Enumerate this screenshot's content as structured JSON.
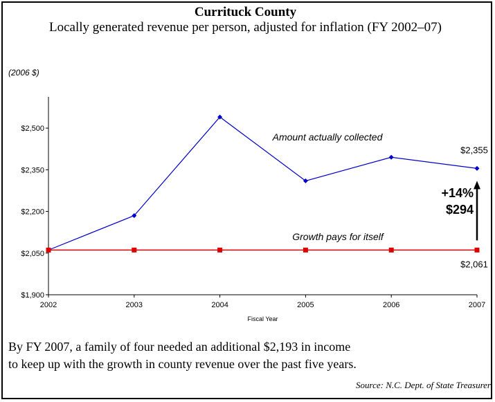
{
  "header": {
    "title": "Currituck County",
    "subtitle": "Locally generated revenue per person, adjusted for inflation (FY 2002–07)",
    "unit_note": "(2006 $)"
  },
  "footer": {
    "line1": "By FY 2007, a family of four needed an additional $2,193 in income",
    "line2": "to keep up with the growth in county revenue over the past five years.",
    "source": "Source: N.C. Dept. of State Treasurer"
  },
  "chart_data": {
    "type": "line",
    "xlabel": "Fiscal Year",
    "ylabel": "",
    "x": [
      "2002",
      "2003",
      "2004",
      "2005",
      "2006",
      "2007"
    ],
    "ylim": [
      1900,
      2600
    ],
    "yticks": [
      1900,
      2050,
      2200,
      2350,
      2500
    ],
    "ytick_labels": [
      "$1,900",
      "$2,050",
      "$2,200",
      "$2,350",
      "$2,500"
    ],
    "grid": false,
    "series": [
      {
        "name": "Amount actually collected",
        "color": "#0000cc",
        "marker": "diamond",
        "values": [
          2061,
          2185,
          2540,
          2310,
          2395,
          2355
        ]
      },
      {
        "name": "Growth pays for itself",
        "color": "#dd0000",
        "marker": "square",
        "values": [
          2061,
          2061,
          2061,
          2061,
          2061,
          2061
        ]
      }
    ],
    "data_labels": [
      {
        "text": "$2,355",
        "series": 0,
        "index": 5
      },
      {
        "text": "$2,061",
        "series": 1,
        "index": 5
      }
    ],
    "annotation": {
      "percent": "+14%",
      "amount": "$294",
      "from": 2061,
      "to": 2355,
      "index": 5
    }
  }
}
